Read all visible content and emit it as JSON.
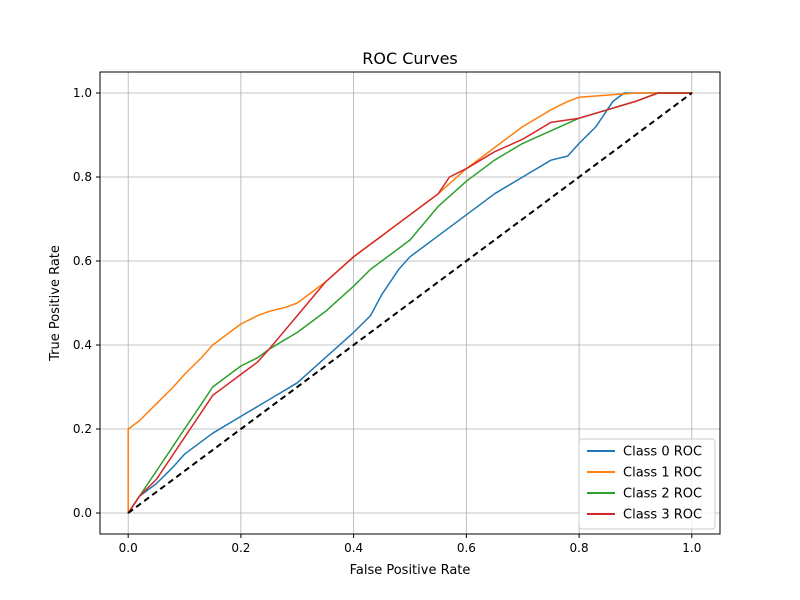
{
  "chart_data": {
    "type": "line",
    "title": "ROC Curves",
    "xlabel": "False Positive Rate",
    "ylabel": "True Positive Rate",
    "xlim": [
      -0.05,
      1.05
    ],
    "ylim": [
      -0.05,
      1.05
    ],
    "xticks": [
      "0.0",
      "0.2",
      "0.4",
      "0.6",
      "0.8",
      "1.0"
    ],
    "yticks": [
      "0.0",
      "0.2",
      "0.4",
      "0.6",
      "0.8",
      "1.0"
    ],
    "grid": true,
    "legend_position": "bottom-right",
    "series": [
      {
        "name": "Class 0 ROC",
        "color": "#1f77b4",
        "x": [
          0,
          0.02,
          0.05,
          0.08,
          0.1,
          0.15,
          0.2,
          0.25,
          0.3,
          0.35,
          0.4,
          0.43,
          0.45,
          0.48,
          0.5,
          0.55,
          0.6,
          0.65,
          0.7,
          0.75,
          0.78,
          0.8,
          0.83,
          0.86,
          0.88,
          1.0
        ],
        "y": [
          0,
          0.04,
          0.07,
          0.11,
          0.14,
          0.19,
          0.23,
          0.27,
          0.31,
          0.37,
          0.43,
          0.47,
          0.52,
          0.58,
          0.61,
          0.66,
          0.71,
          0.76,
          0.8,
          0.84,
          0.85,
          0.88,
          0.92,
          0.98,
          1.0,
          1.0
        ]
      },
      {
        "name": "Class 1 ROC",
        "color": "#ff7f0e",
        "x": [
          0,
          0,
          0.02,
          0.05,
          0.08,
          0.1,
          0.13,
          0.15,
          0.18,
          0.2,
          0.23,
          0.25,
          0.28,
          0.3,
          0.35,
          0.4,
          0.45,
          0.5,
          0.55,
          0.6,
          0.65,
          0.7,
          0.75,
          0.78,
          0.8,
          0.85,
          0.9,
          0.92,
          1.0
        ],
        "y": [
          0,
          0.2,
          0.22,
          0.26,
          0.3,
          0.33,
          0.37,
          0.4,
          0.43,
          0.45,
          0.47,
          0.48,
          0.49,
          0.5,
          0.55,
          0.61,
          0.66,
          0.71,
          0.76,
          0.82,
          0.87,
          0.92,
          0.96,
          0.98,
          0.99,
          0.995,
          1.0,
          1.0,
          1.0
        ]
      },
      {
        "name": "Class 2 ROC",
        "color": "#2ca02c",
        "x": [
          0,
          0.02,
          0.05,
          0.08,
          0.1,
          0.13,
          0.15,
          0.18,
          0.2,
          0.23,
          0.25,
          0.3,
          0.35,
          0.4,
          0.43,
          0.45,
          0.5,
          0.55,
          0.6,
          0.65,
          0.7,
          0.75,
          0.8,
          0.85,
          0.9,
          0.94,
          1.0
        ],
        "y": [
          0,
          0.04,
          0.1,
          0.16,
          0.2,
          0.26,
          0.3,
          0.33,
          0.35,
          0.37,
          0.39,
          0.43,
          0.48,
          0.54,
          0.58,
          0.6,
          0.65,
          0.73,
          0.79,
          0.84,
          0.88,
          0.91,
          0.94,
          0.96,
          0.98,
          1.0,
          1.0
        ]
      },
      {
        "name": "Class 3 ROC",
        "color": "#d62728",
        "x": [
          0,
          0.02,
          0.05,
          0.08,
          0.1,
          0.13,
          0.15,
          0.18,
          0.2,
          0.23,
          0.25,
          0.3,
          0.35,
          0.4,
          0.45,
          0.5,
          0.55,
          0.57,
          0.6,
          0.65,
          0.7,
          0.75,
          0.8,
          0.85,
          0.9,
          0.94,
          1.0
        ],
        "y": [
          0,
          0.04,
          0.08,
          0.14,
          0.18,
          0.24,
          0.28,
          0.31,
          0.33,
          0.36,
          0.39,
          0.47,
          0.55,
          0.61,
          0.66,
          0.71,
          0.76,
          0.8,
          0.82,
          0.86,
          0.89,
          0.93,
          0.94,
          0.96,
          0.98,
          1.0,
          1.0
        ]
      }
    ],
    "reference_line": {
      "color": "#000000",
      "x": [
        0,
        1
      ],
      "y": [
        0,
        1
      ]
    }
  }
}
